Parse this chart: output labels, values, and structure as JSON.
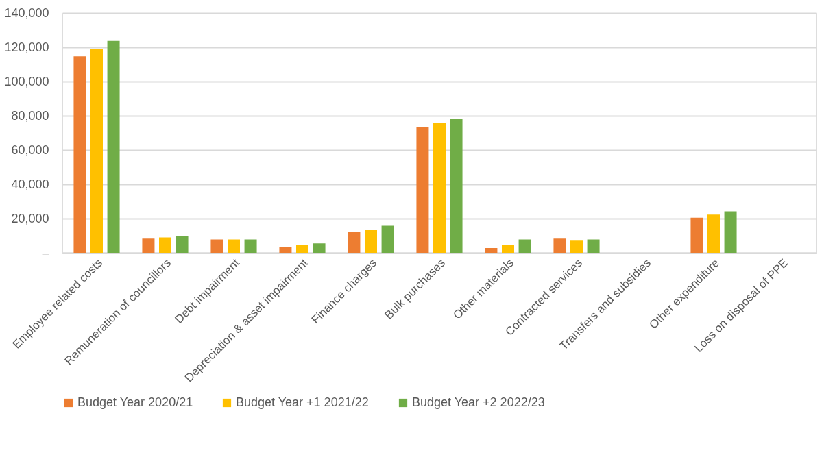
{
  "chart_data": {
    "type": "bar",
    "categories": [
      "Employee related costs",
      "Remuneration of councillors",
      "Debt impairment",
      "Depreciation & asset impairment",
      "Finance charges",
      "Bulk purchases",
      "Other materials",
      "Contracted services",
      "Transfers and subsidies",
      "Other expenditure",
      "Loss on disposal of PPE"
    ],
    "series": [
      {
        "name": "Budget Year 2020/21",
        "color": "#ed7d31",
        "values": [
          114700,
          8300,
          7800,
          3500,
          12000,
          73300,
          2800,
          8300,
          0,
          20500,
          0
        ]
      },
      {
        "name": "Budget Year +1 2021/22",
        "color": "#ffc000",
        "values": [
          119100,
          9000,
          7800,
          4800,
          13300,
          75700,
          4800,
          7100,
          0,
          22300,
          0
        ]
      },
      {
        "name": "Budget Year +2 2022/23",
        "color": "#70ad47",
        "values": [
          123700,
          9600,
          7800,
          5500,
          15800,
          78000,
          7800,
          7800,
          0,
          24200,
          0
        ]
      }
    ],
    "ylim": [
      0,
      140000
    ],
    "yticks": [
      {
        "value": 0,
        "label": "–"
      },
      {
        "value": 20000,
        "label": "20,000"
      },
      {
        "value": 40000,
        "label": "40,000"
      },
      {
        "value": 60000,
        "label": "60,000"
      },
      {
        "value": 80000,
        "label": "80,000"
      },
      {
        "value": 100000,
        "label": "100,000"
      },
      {
        "value": 120000,
        "label": "120,000"
      },
      {
        "value": 140000,
        "label": "140,000"
      }
    ],
    "grid": "y",
    "legend": "bottom"
  }
}
